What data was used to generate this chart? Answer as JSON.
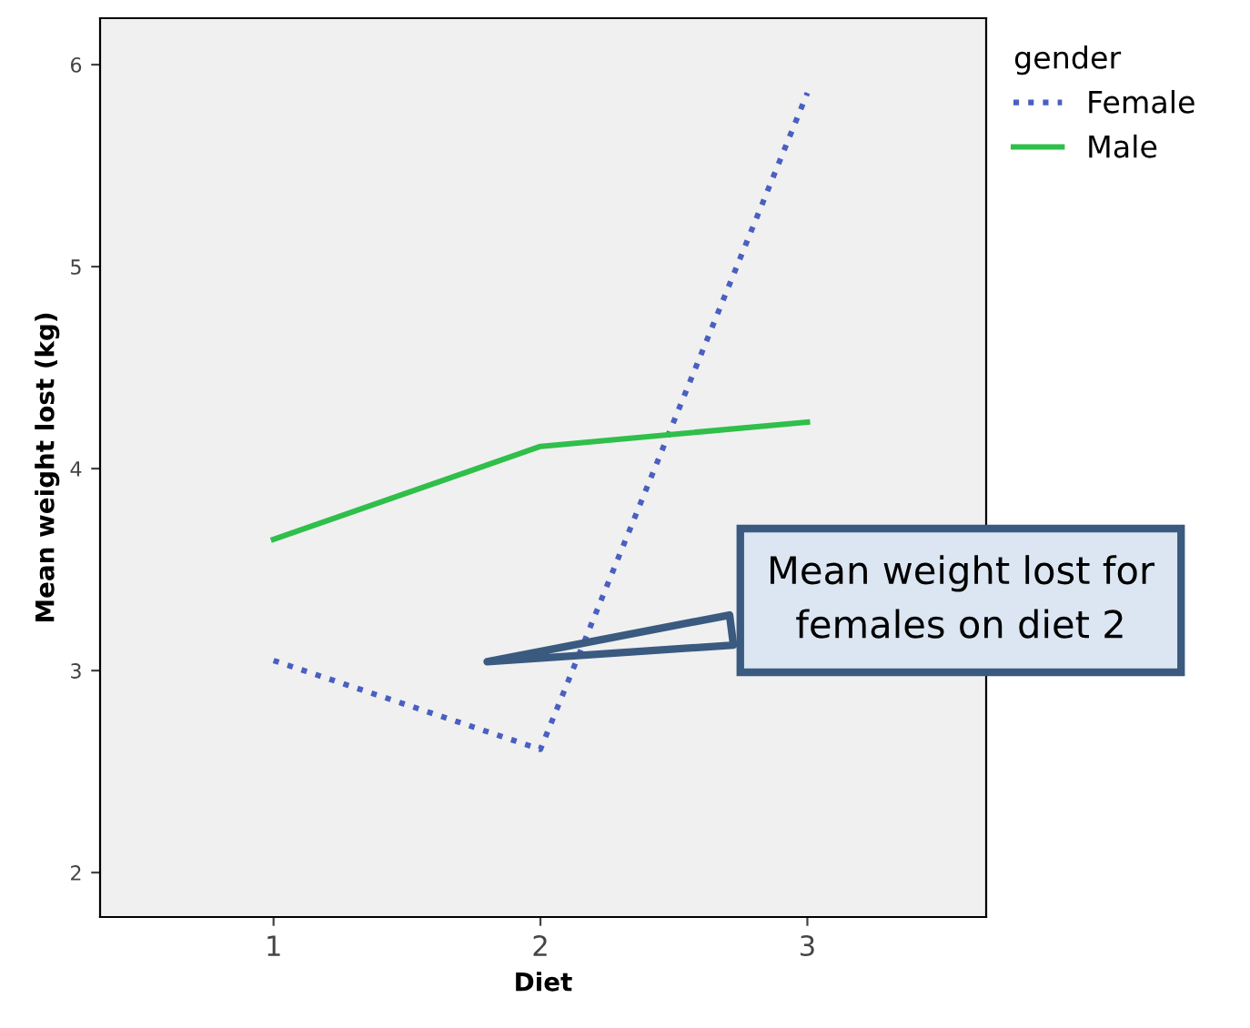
{
  "chart_data": {
    "type": "line",
    "xlabel": "Diet",
    "ylabel": "Mean weight lost (kg)",
    "legend_title": "gender",
    "legend": "top right",
    "grid": false,
    "categories": [
      "1",
      "2",
      "3"
    ],
    "series": [
      {
        "name": "Female",
        "color": "#4a5fc1",
        "line_style": "dotted",
        "values": [
          3.05,
          2.61,
          5.86
        ]
      },
      {
        "name": "Male",
        "color": "#2fbf4a",
        "line_style": "solid",
        "values": [
          3.65,
          4.11,
          4.23
        ]
      }
    ],
    "ylim": [
      1.78,
      6.23
    ],
    "yticks": [
      2,
      3,
      4,
      5,
      6
    ],
    "annotations": [
      "Mean weight lost for\nfemales on diet 2"
    ]
  }
}
